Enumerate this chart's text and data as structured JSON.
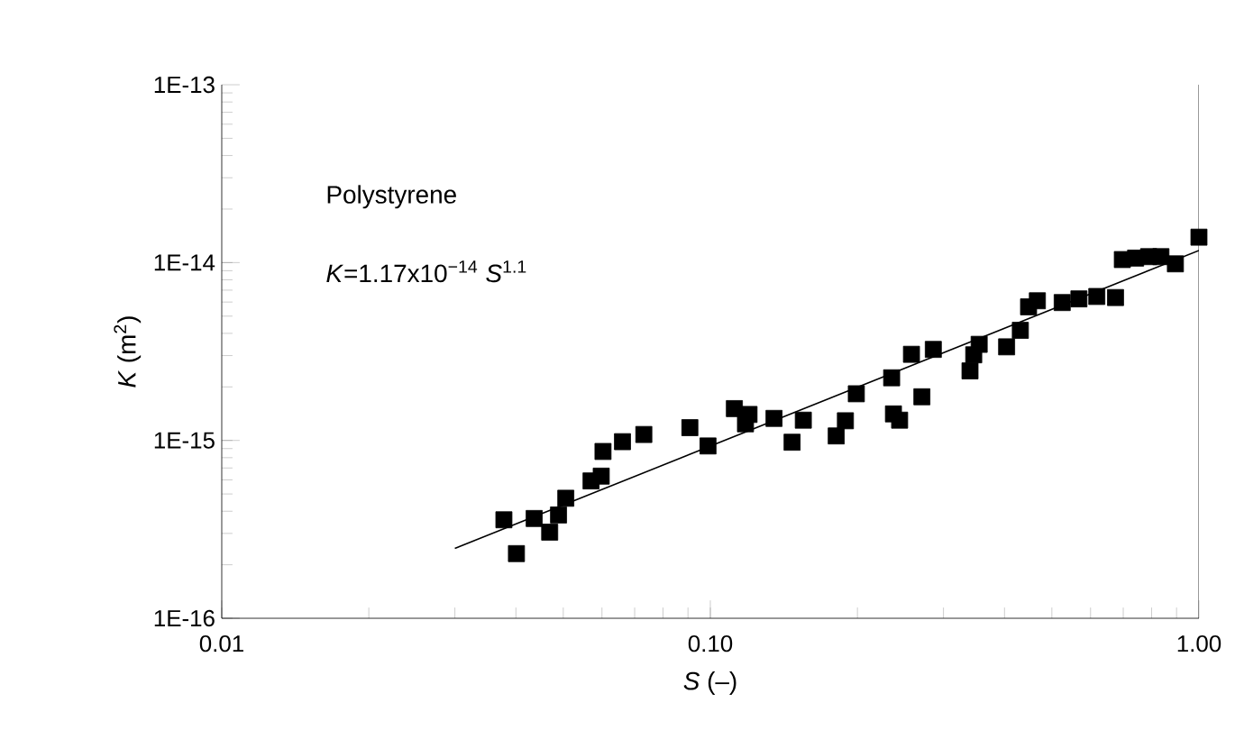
{
  "chart_data": {
    "type": "scatter",
    "xlabel": "*S* (–)",
    "ylabel": "*K* (m$^{2}$)",
    "annotations": [
      "Polystyrene",
      "*K*=1.17x10$^{−14}$ *S*$^{1.1}$"
    ],
    "log": "xy",
    "grid": false,
    "xlim": [
      0.01,
      1.0
    ],
    "ylim": [
      1e-16,
      1e-13
    ],
    "xticks": [
      {
        "value": 0.01,
        "label": "0.01"
      },
      {
        "value": 0.1,
        "label": "0.10"
      },
      {
        "value": 1.0,
        "label": "1.00"
      }
    ],
    "yticks": [
      {
        "value": 1e-16,
        "label": "1E-16"
      },
      {
        "value": 1e-15,
        "label": "1E-15"
      },
      {
        "value": 1e-14,
        "label": "1E-14"
      },
      {
        "value": 1e-13,
        "label": "1E-13"
      }
    ],
    "series": [
      {
        "color": "#000000",
        "marker": "square",
        "x": [
          0.0378,
          0.0401,
          0.0436,
          0.0469,
          0.0489,
          0.0506,
          0.057,
          0.0598,
          0.0603,
          0.0661,
          0.0731,
          0.0908,
          0.0989,
          0.112,
          0.118,
          0.12,
          0.135,
          0.147,
          0.155,
          0.181,
          0.189,
          0.199,
          0.235,
          0.237,
          0.244,
          0.258,
          0.271,
          0.286,
          0.34,
          0.346,
          0.355,
          0.404,
          0.431,
          0.448,
          0.467,
          0.525,
          0.568,
          0.618,
          0.675,
          0.697,
          0.742,
          0.789,
          0.836,
          0.895,
          1.0
        ],
        "values": [
          3.58e-16,
          2.31e-16,
          3.64e-16,
          3.05e-16,
          3.81e-16,
          4.73e-16,
          5.92e-16,
          6.3e-16,
          8.67e-16,
          9.84e-16,
          1.08e-15,
          1.18e-15,
          9.31e-16,
          1.51e-15,
          1.24e-15,
          1.4e-15,
          1.33e-15,
          9.77e-16,
          1.3e-15,
          1.06e-15,
          1.29e-15,
          1.83e-15,
          2.25e-15,
          1.41e-15,
          1.3e-15,
          3.05e-15,
          1.76e-15,
          3.25e-15,
          2.46e-15,
          3.03e-15,
          3.47e-15,
          3.36e-15,
          4.16e-15,
          5.64e-15,
          6.1e-15,
          5.96e-15,
          6.25e-15,
          6.45e-15,
          6.36e-15,
          1.04e-14,
          1.06e-14,
          1.08e-14,
          1.08e-14,
          9.84e-15,
          1.39e-14
        ]
      },
      {
        "color": "#000000",
        "type": "line",
        "marker": "none",
        "line_style": "solid",
        "x": [
          0.03,
          1.0
        ],
        "values": [
          2.47e-16,
          1.17e-14
        ]
      }
    ]
  }
}
